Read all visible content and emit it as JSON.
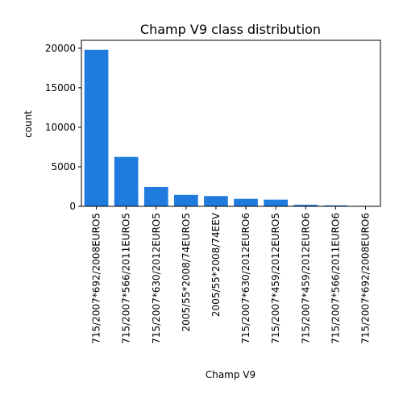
{
  "chart_data": {
    "type": "bar",
    "title": "Champ V9 class distribution",
    "xlabel": "Champ V9",
    "ylabel": "count",
    "categories": [
      "715/2007*692/2008EURO5",
      "715/2007*566/2011EURO5",
      "715/2007*630/2012EURO5",
      "2005/55*2008/74EURO5",
      "2005/55*2008/74EEV",
      "715/2007*630/2012EURO6",
      "715/2007*459/2012EURO5",
      "715/2007*459/2012EURO6",
      "715/2007*566/2011EURO6",
      "715/2007*692/2008EURO6"
    ],
    "values": [
      19800,
      6250,
      2450,
      1450,
      1300,
      950,
      850,
      200,
      120,
      40
    ],
    "ylim": [
      0,
      21000
    ],
    "yticks": [
      0,
      5000,
      10000,
      15000,
      20000
    ],
    "bar_color": "#1f7bde",
    "grid": false,
    "legend": false
  }
}
